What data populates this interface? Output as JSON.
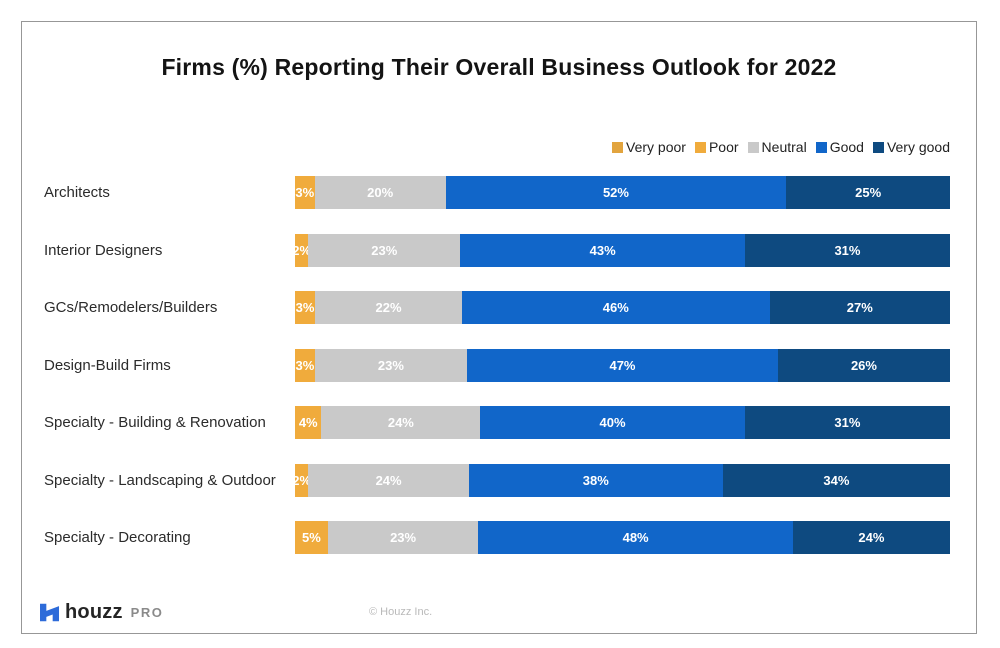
{
  "title": "Firms (%) Reporting Their Overall Business Outlook for 2022",
  "legend": {
    "items": [
      {
        "label": "Very poor",
        "color": "#E2A43E"
      },
      {
        "label": "Poor",
        "color": "#F0AB3C"
      },
      {
        "label": "Neutral",
        "color": "#C9C9C9"
      },
      {
        "label": "Good",
        "color": "#1166C9"
      },
      {
        "label": "Very good",
        "color": "#0E4A80"
      }
    ]
  },
  "chart_data": {
    "type": "bar",
    "subtype": "horizontal-stacked",
    "title": "Firms (%) Reporting Their Overall Business Outlook for 2022",
    "unit": "%",
    "xlim": [
      0,
      100
    ],
    "legend_position": "top-right",
    "legend_labels": [
      "Very poor",
      "Poor",
      "Neutral",
      "Good",
      "Very good"
    ],
    "categories": [
      "Architects",
      "Interior Designers",
      "GCs/Remodelers/Builders",
      "Design-Build Firms",
      "Specialty - Building & Renovation",
      "Specialty - Landscaping & Outdoor",
      "Specialty - Decorating"
    ],
    "series": [
      {
        "name": "Poor",
        "color": "#F0AB3C",
        "values": [
          3,
          2,
          3,
          3,
          4,
          2,
          5
        ]
      },
      {
        "name": "Neutral",
        "color": "#C9C9C9",
        "values": [
          20,
          23,
          22,
          23,
          24,
          24,
          23
        ]
      },
      {
        "name": "Good",
        "color": "#1166C9",
        "values": [
          52,
          43,
          46,
          47,
          40,
          38,
          48
        ]
      },
      {
        "name": "Very good",
        "color": "#0E4A80",
        "values": [
          25,
          31,
          27,
          26,
          31,
          34,
          24
        ]
      }
    ]
  },
  "footer": {
    "logo_word": "houzz",
    "logo_suffix": "PRO",
    "copyright": "© Houzz Inc."
  },
  "colors": {
    "gold": "#F0AB3C",
    "neutral_gray": "#C9C9C9",
    "accent_blue": "#1166C9",
    "dark_blue": "#0E4A80",
    "logo_blue": "#2D6BD9"
  }
}
